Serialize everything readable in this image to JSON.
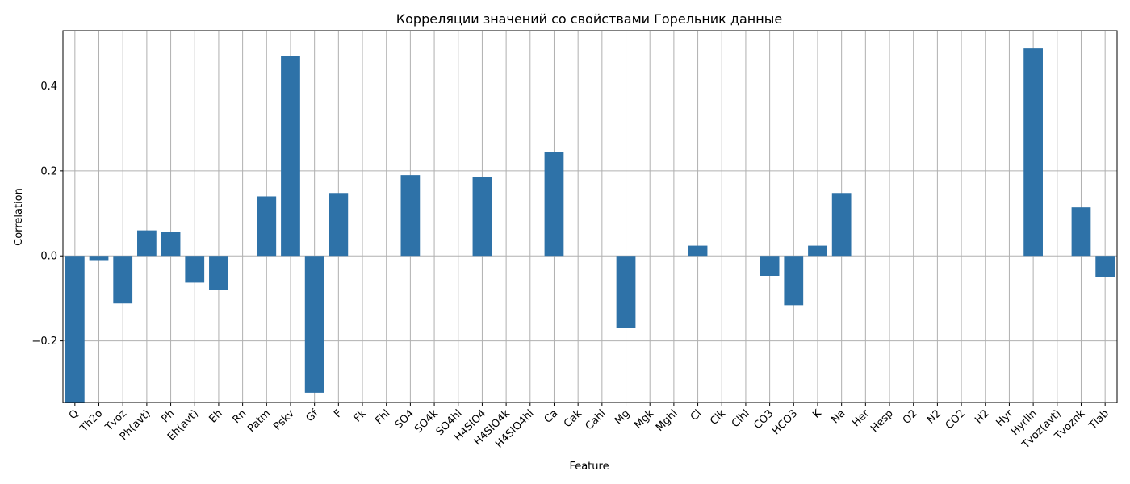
{
  "chart_data": {
    "type": "bar",
    "title": "Корреляции значений со свойствами Горельник данные",
    "xlabel": "Feature",
    "ylabel": "Correlation",
    "ylim": [
      -0.345,
      0.53
    ],
    "yticks": [
      -0.2,
      0.0,
      0.2,
      0.4
    ],
    "ytick_labels": [
      "−0.2",
      "0.0",
      "0.2",
      "0.4"
    ],
    "grid": true,
    "bar_color": "#2e72a8",
    "grid_color": "#b0b0b0",
    "categories": [
      "Q",
      "Th2o",
      "Tvoz",
      "Ph(avt)",
      "Ph",
      "Eh(avt)",
      "Eh",
      "Rn",
      "Patm",
      "Pskv",
      "Gf",
      "F",
      "Fk",
      "Fhl",
      "SO4",
      "SO4k",
      "SO4hl",
      "H4SIO4",
      "H4SIO4k",
      "H4SIO4hl",
      "Ca",
      "Cak",
      "Cahl",
      "Mg",
      "Mgk",
      "Mghl",
      "Cl",
      "Clk",
      "Clhl",
      "CO3",
      "HCO3",
      "K",
      "Na",
      "Her",
      "Hesp",
      "O2",
      "N2",
      "CO2",
      "H2",
      "Hyr",
      "Hyrlin",
      "Tvoz(avt)",
      "Tvoznk",
      "Tlab"
    ],
    "values": [
      -0.345,
      -0.01,
      -0.112,
      0.06,
      0.056,
      -0.063,
      -0.08,
      0.0,
      0.14,
      0.47,
      -0.322,
      0.148,
      0.0,
      0.0,
      0.19,
      0.0,
      0.0,
      0.186,
      0.0,
      0.0,
      0.244,
      0.0,
      0.0,
      -0.17,
      0.0,
      0.0,
      0.024,
      0.0,
      0.0,
      -0.047,
      -0.116,
      0.024,
      0.148,
      0.0,
      0.0,
      0.0,
      0.0,
      0.0,
      0.0,
      0.0,
      0.488,
      0.0,
      0.114,
      -0.049
    ]
  }
}
